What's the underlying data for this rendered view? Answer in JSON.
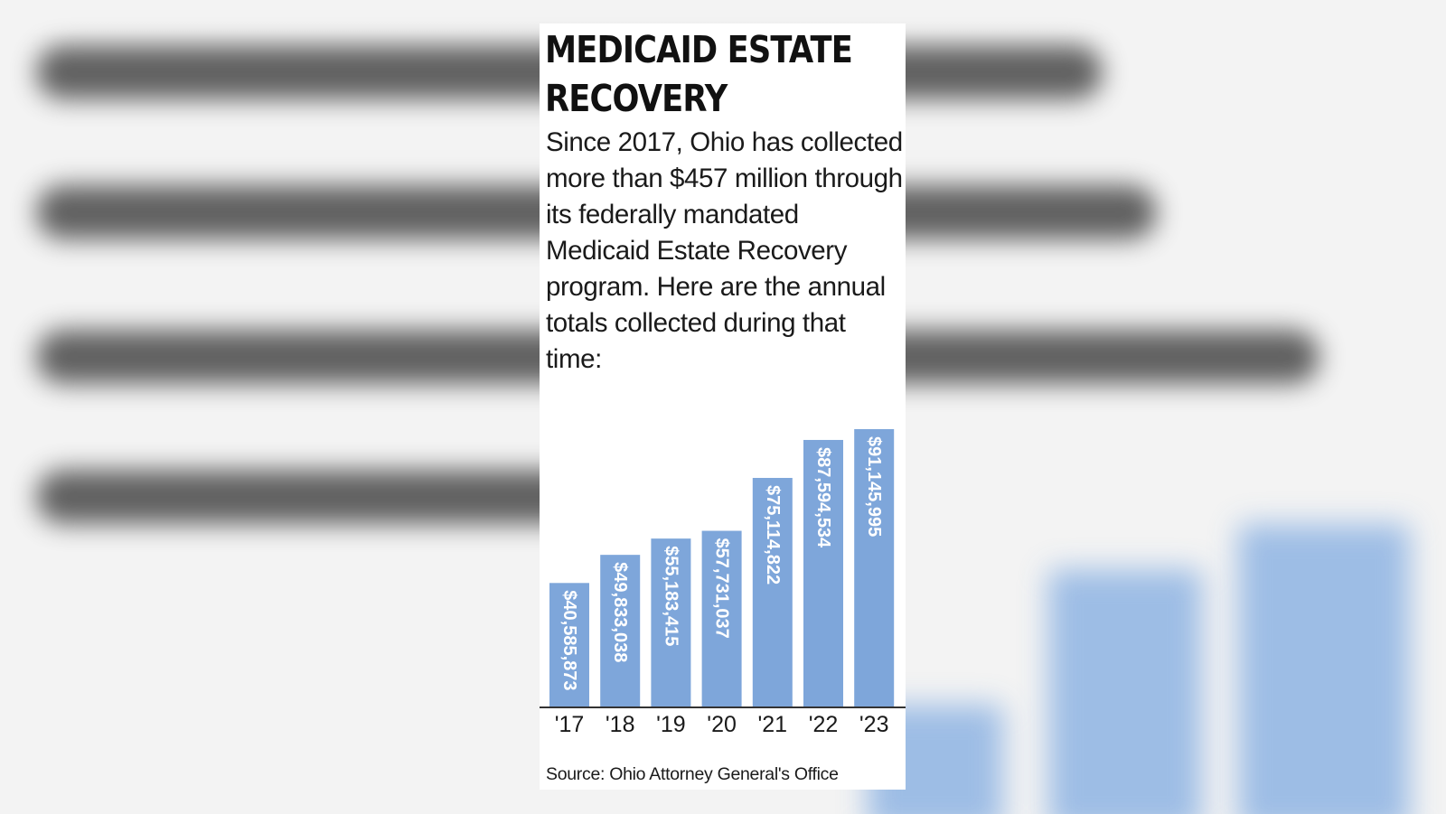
{
  "colors": {
    "bar": "#7ea6da",
    "bar_label": "#ffffff",
    "axis": "#333333",
    "text": "#1a1a1a"
  },
  "graphic": {
    "title": "MEDICAID ESTATE RECOVERY",
    "description": "Since 2017, Ohio has collected more than $457 million through its federally mandated Medicaid Estate Recovery program. Here are the annual totals collected during that time:",
    "source": "Source: Ohio Attorney General's Office"
  },
  "chart_data": {
    "type": "bar",
    "title": "MEDICAID ESTATE RECOVERY",
    "xlabel": "",
    "ylabel": "",
    "categories": [
      "'17",
      "'18",
      "'19",
      "'20",
      "'21",
      "'22",
      "'23"
    ],
    "values": [
      40585873,
      49833038,
      55183415,
      57731037,
      75114822,
      87594534,
      91145995
    ],
    "value_labels": [
      "$40,585,873",
      "$49,833,038",
      "$55,183,415",
      "$57,731,037",
      "$75,114,822",
      "$87,594,534",
      "$91,145,995"
    ],
    "ylim": [
      0,
      91145995
    ],
    "grid": false,
    "legend": "none",
    "label_orientation": "vertical-in-bar"
  }
}
